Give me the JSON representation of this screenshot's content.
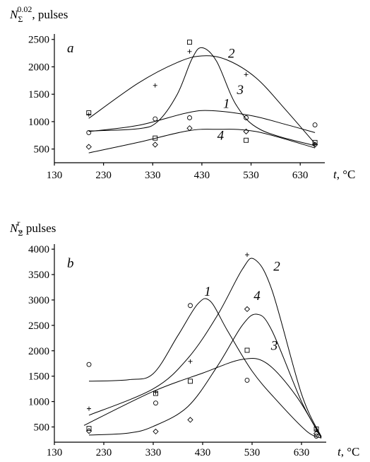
{
  "chart_data": [
    {
      "type": "scatter",
      "panel_label": "a",
      "ylabel": {
        "symbol": "N",
        "sub": "Σ",
        "sup": "0.02",
        "text": ", pulses"
      },
      "xlabel": {
        "symbol": "t",
        "text": ", °C"
      },
      "xlim": [
        130,
        680
      ],
      "ylim": [
        250,
        2600
      ],
      "xticks": [
        130,
        230,
        330,
        430,
        530,
        630
      ],
      "yticks": [
        500,
        1000,
        1500,
        2000,
        2500
      ],
      "grid": false,
      "series": [
        {
          "name": "1",
          "marker": "circle",
          "points": [
            [
              200,
              800
            ],
            [
              335,
              1050
            ],
            [
              405,
              1070
            ],
            [
              520,
              1070
            ],
            [
              660,
              940
            ]
          ],
          "fit": [
            [
              200,
              820
            ],
            [
              300,
              930
            ],
            [
              400,
              1160
            ],
            [
              450,
              1200
            ],
            [
              530,
              1110
            ],
            [
              600,
              950
            ],
            [
              660,
              800
            ]
          ]
        },
        {
          "name": "2",
          "marker": "plus",
          "points": [
            [
              200,
              1130
            ],
            [
              335,
              1660
            ],
            [
              405,
              2280
            ],
            [
              520,
              1860
            ],
            [
              660,
              590
            ]
          ],
          "fit": [
            [
              200,
              1060
            ],
            [
              300,
              1700
            ],
            [
              380,
              2080
            ],
            [
              430,
              2200
            ],
            [
              480,
              2130
            ],
            [
              540,
              1800
            ],
            [
              600,
              1220
            ],
            [
              660,
              600
            ]
          ]
        },
        {
          "name": "3",
          "marker": "square",
          "points": [
            [
              200,
              1160
            ],
            [
              335,
              700
            ],
            [
              405,
              2450
            ],
            [
              520,
              660
            ],
            [
              660,
              620
            ]
          ],
          "fit": [
            [
              200,
              830
            ],
            [
              300,
              870
            ],
            [
              340,
              1000
            ],
            [
              380,
              1500
            ],
            [
              410,
              2150
            ],
            [
              430,
              2350
            ],
            [
              460,
              2100
            ],
            [
              500,
              1300
            ],
            [
              550,
              850
            ],
            [
              660,
              560
            ]
          ]
        },
        {
          "name": "4",
          "marker": "diamond",
          "points": [
            [
              200,
              540
            ],
            [
              335,
              580
            ],
            [
              405,
              880
            ],
            [
              520,
              820
            ],
            [
              660,
              580
            ]
          ],
          "fit": [
            [
              200,
              430
            ],
            [
              300,
              620
            ],
            [
              400,
              830
            ],
            [
              460,
              860
            ],
            [
              540,
              820
            ],
            [
              660,
              520
            ]
          ]
        }
      ],
      "curve_labels": [
        {
          "text": "2",
          "x": 490,
          "y": 2170
        },
        {
          "text": "3",
          "x": 508,
          "y": 1500
        },
        {
          "text": "1",
          "x": 480,
          "y": 1250
        },
        {
          "text": "4",
          "x": 468,
          "y": 670
        }
      ]
    },
    {
      "type": "scatter",
      "panel_label": "b",
      "ylabel": {
        "symbol": "N",
        "sub": "Σ",
        "sup": "r",
        "text": ", pulses"
      },
      "xlabel": {
        "symbol": "t",
        "text": ", °C"
      },
      "xlim": [
        130,
        680
      ],
      "ylim": [
        200,
        4100
      ],
      "xticks": [
        130,
        230,
        330,
        430,
        530,
        630
      ],
      "yticks": [
        500,
        1000,
        1500,
        2000,
        2500,
        3000,
        3500,
        4000
      ],
      "grid": false,
      "series": [
        {
          "name": "1",
          "marker": "circle",
          "points": [
            [
              200,
              1730
            ],
            [
              335,
              970
            ],
            [
              405,
              2890
            ],
            [
              520,
              1420
            ],
            [
              660,
              320
            ]
          ],
          "fit": [
            [
              200,
              1400
            ],
            [
              280,
              1430
            ],
            [
              330,
              1550
            ],
            [
              380,
              2300
            ],
            [
              420,
              2920
            ],
            [
              445,
              2980
            ],
            [
              480,
              2400
            ],
            [
              530,
              1600
            ],
            [
              580,
              1020
            ],
            [
              640,
              420
            ],
            [
              670,
              280
            ]
          ]
        },
        {
          "name": "2",
          "marker": "plus",
          "points": [
            [
              200,
              860
            ],
            [
              335,
              1180
            ],
            [
              405,
              1790
            ],
            [
              520,
              3890
            ],
            [
              660,
              440
            ]
          ],
          "fit": [
            [
              200,
              730
            ],
            [
              330,
              1250
            ],
            [
              400,
              1850
            ],
            [
              460,
              2700
            ],
            [
              510,
              3600
            ],
            [
              535,
              3800
            ],
            [
              570,
              3200
            ],
            [
              630,
              1150
            ],
            [
              670,
              310
            ]
          ]
        },
        {
          "name": "3",
          "marker": "square",
          "points": [
            [
              200,
              470
            ],
            [
              335,
              1160
            ],
            [
              405,
              1400
            ],
            [
              520,
              2010
            ],
            [
              660,
              460
            ]
          ],
          "fit": [
            [
              190,
              530
            ],
            [
              330,
              1200
            ],
            [
              430,
              1560
            ],
            [
              510,
              1830
            ],
            [
              560,
              1750
            ],
            [
              620,
              1100
            ],
            [
              670,
              280
            ]
          ]
        },
        {
          "name": "4",
          "marker": "diamond",
          "points": [
            [
              200,
              420
            ],
            [
              335,
              410
            ],
            [
              405,
              640
            ],
            [
              520,
              2820
            ],
            [
              660,
              370
            ]
          ],
          "fit": [
            [
              200,
              340
            ],
            [
              280,
              380
            ],
            [
              330,
              510
            ],
            [
              400,
              900
            ],
            [
              460,
              1700
            ],
            [
              510,
              2500
            ],
            [
              540,
              2720
            ],
            [
              570,
              2400
            ],
            [
              630,
              1000
            ],
            [
              670,
              300
            ]
          ]
        }
      ],
      "curve_labels": [
        {
          "text": "1",
          "x": 440,
          "y": 3080
        },
        {
          "text": "2",
          "x": 580,
          "y": 3580
        },
        {
          "text": "4",
          "x": 540,
          "y": 3000
        },
        {
          "text": "3",
          "x": 575,
          "y": 2020
        }
      ]
    }
  ]
}
